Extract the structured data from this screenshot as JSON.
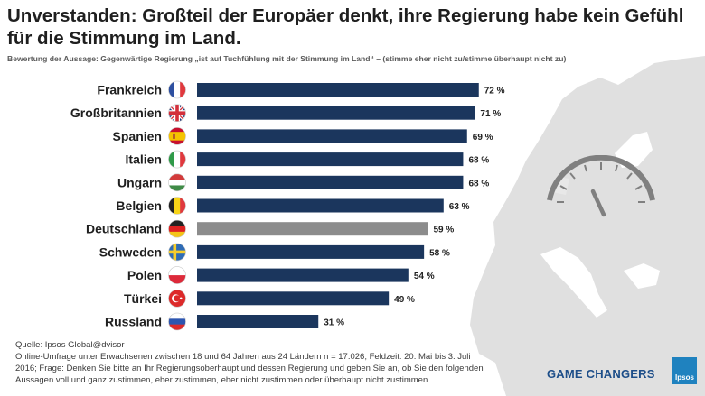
{
  "header": {
    "title": "Unverstanden: Großteil der Europäer denkt, ihre Regierung habe kein Gefühl für die Stimmung im Land.",
    "subtitle": "Bewertung der Aussage: Gegenwärtige Regierung „ist auf Tuchfühlung mit der Stimmung im Land“ –  (stimme eher nicht zu/stimme überhaupt nicht zu)"
  },
  "chart_data": {
    "type": "bar",
    "orientation": "horizontal",
    "categories": [
      "Frankreich",
      "Großbritannien",
      "Spanien",
      "Italien",
      "Ungarn",
      "Belgien",
      "Deutschland",
      "Schweden",
      "Polen",
      "Türkei",
      "Russland"
    ],
    "values": [
      72,
      71,
      69,
      68,
      68,
      63,
      59,
      58,
      54,
      49,
      31
    ],
    "value_labels": [
      "72 %",
      "71 %",
      "69 %",
      "68 %",
      "68 %",
      "63 %",
      "59 %",
      "58 %",
      "54 %",
      "49 %",
      "31 %"
    ],
    "unit": "%",
    "xlim": [
      0,
      100
    ],
    "grid": false,
    "highlight": "Deutschland",
    "colors": {
      "bar": "#1b365d",
      "highlight": "#8c8c8c",
      "map": "#e0e0e0",
      "gauge": "#808080"
    }
  },
  "footer": {
    "source_lines": [
      "Quelle: Ipsos Global@dvisor",
      "Online-Umfrage unter Erwachsenen zwischen 18 und 64 Jahren aus 24 Ländern n = 17.026; Feldzeit: 20. Mai bis 3. Juli",
      "2016; Frage: Denken Sie bitte an Ihr Regierungsoberhaupt und dessen Regierung und geben Sie an, ob Sie den folgenden",
      "Aussagen voll und ganz zustimmen, eher zustimmen, eher nicht zustimmen oder überhaupt nicht zustimmen"
    ],
    "brand": "GAME CHANGERS",
    "logo_text": "Ipsos"
  },
  "flags": [
    "flag-france",
    "flag-united-kingdom",
    "flag-spain",
    "flag-italy",
    "flag-hungary",
    "flag-belgium",
    "flag-germany",
    "flag-sweden",
    "flag-poland",
    "flag-turkey",
    "flag-russia"
  ]
}
